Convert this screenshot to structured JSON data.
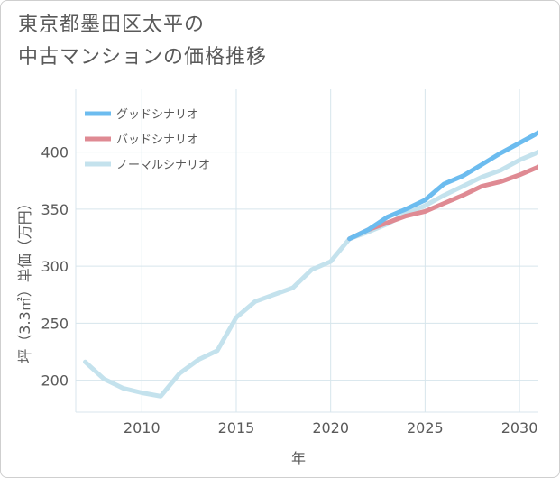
{
  "title": {
    "line1": "東京都墨田区太平の",
    "line2": "中古マンションの価格推移"
  },
  "chart_data": {
    "type": "line",
    "xlabel": "年",
    "ylabel": "坪（3.3㎡）単価（万円）",
    "xlim": [
      2006.5,
      2031
    ],
    "ylim": [
      172,
      455
    ],
    "xticks": [
      2010,
      2015,
      2020,
      2025,
      2030
    ],
    "yticks": [
      200,
      250,
      300,
      350,
      400
    ],
    "grid": true,
    "legend_position": "top-left",
    "series": [
      {
        "name": "グッドシナリオ",
        "color": "#6cbcef",
        "x": [
          2021,
          2022,
          2023,
          2024,
          2025,
          2026,
          2027,
          2028,
          2029,
          2030,
          2031
        ],
        "y": [
          324,
          332,
          343,
          350,
          358,
          372,
          379,
          389,
          399,
          408,
          417
        ]
      },
      {
        "name": "バッドシナリオ",
        "color": "#df8a93",
        "x": [
          2021,
          2022,
          2023,
          2024,
          2025,
          2026,
          2027,
          2028,
          2029,
          2030,
          2031
        ],
        "y": [
          324,
          332,
          338,
          344,
          348,
          355,
          362,
          370,
          374,
          380,
          387
        ]
      },
      {
        "name": "ノーマルシナリオ",
        "color": "#c4e2ed",
        "x": [
          2007,
          2008,
          2009,
          2010,
          2011,
          2012,
          2013,
          2014,
          2015,
          2016,
          2017,
          2018,
          2019,
          2020,
          2021,
          2022,
          2023,
          2024,
          2025,
          2026,
          2027,
          2028,
          2029,
          2030,
          2031
        ],
        "y": [
          216,
          201,
          193,
          189,
          186,
          206,
          218,
          226,
          255,
          269,
          275,
          281,
          297,
          304,
          324,
          330,
          337,
          346,
          353,
          362,
          370,
          378,
          384,
          393,
          400
        ]
      }
    ]
  }
}
